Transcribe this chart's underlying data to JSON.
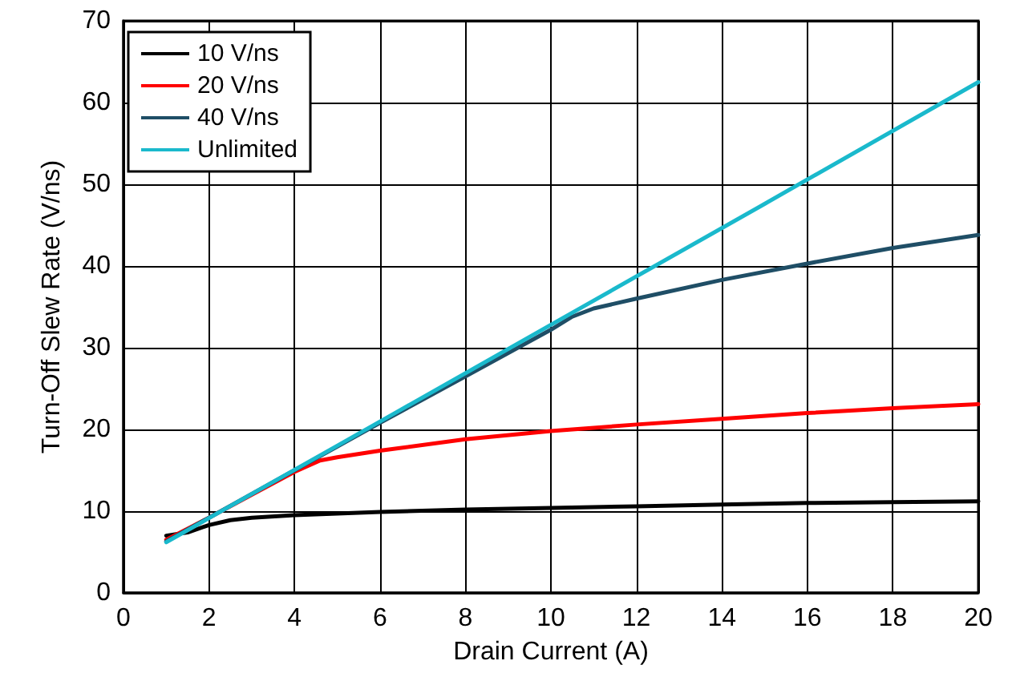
{
  "chart_data": {
    "type": "line",
    "xlabel": "Drain Current (A)",
    "ylabel": "Turn-Off Slew Rate (V/ns)",
    "xlim": [
      0,
      20
    ],
    "xticks": [
      0,
      2,
      4,
      6,
      8,
      10,
      12,
      14,
      16,
      18,
      20
    ],
    "ylim": [
      0,
      70
    ],
    "yticks": [
      0,
      10,
      20,
      30,
      40,
      50,
      60,
      70
    ],
    "grid": true,
    "legend": "top left",
    "marker": "none",
    "line_style": "solid",
    "series": [
      {
        "name": "10 V/ns",
        "color": "#000000",
        "x": [
          1,
          1.5,
          2,
          2.5,
          3,
          4,
          6,
          8,
          10,
          12,
          14,
          16,
          18,
          20
        ],
        "values": [
          7,
          7.4,
          8.3,
          8.9,
          9.2,
          9.5,
          9.9,
          10.2,
          10.4,
          10.6,
          10.8,
          11,
          11.1,
          11.2
        ]
      },
      {
        "name": "20 V/ns",
        "color": "#ff0000",
        "x": [
          1,
          2,
          3,
          4,
          4.6,
          5,
          6,
          8,
          10,
          12,
          14,
          16,
          18,
          20
        ],
        "values": [
          6.5,
          9.2,
          12,
          14.8,
          16.2,
          16.6,
          17.4,
          18.8,
          19.8,
          20.6,
          21.3,
          22,
          22.6,
          23.1
        ]
      },
      {
        "name": "40 V/ns",
        "color": "#1f4e66",
        "x": [
          1,
          2,
          4,
          6,
          8,
          10,
          10.5,
          11,
          12,
          14,
          16,
          18,
          20
        ],
        "values": [
          6.3,
          9.2,
          15,
          20.8,
          26.5,
          32.2,
          33.8,
          34.8,
          36,
          38.3,
          40.3,
          42.2,
          43.8
        ]
      },
      {
        "name": "Unlimited",
        "color": "#1ab9cc",
        "x": [
          1,
          5,
          10,
          15,
          20
        ],
        "values": [
          6.2,
          18,
          32.8,
          47.6,
          62.5
        ]
      }
    ]
  }
}
